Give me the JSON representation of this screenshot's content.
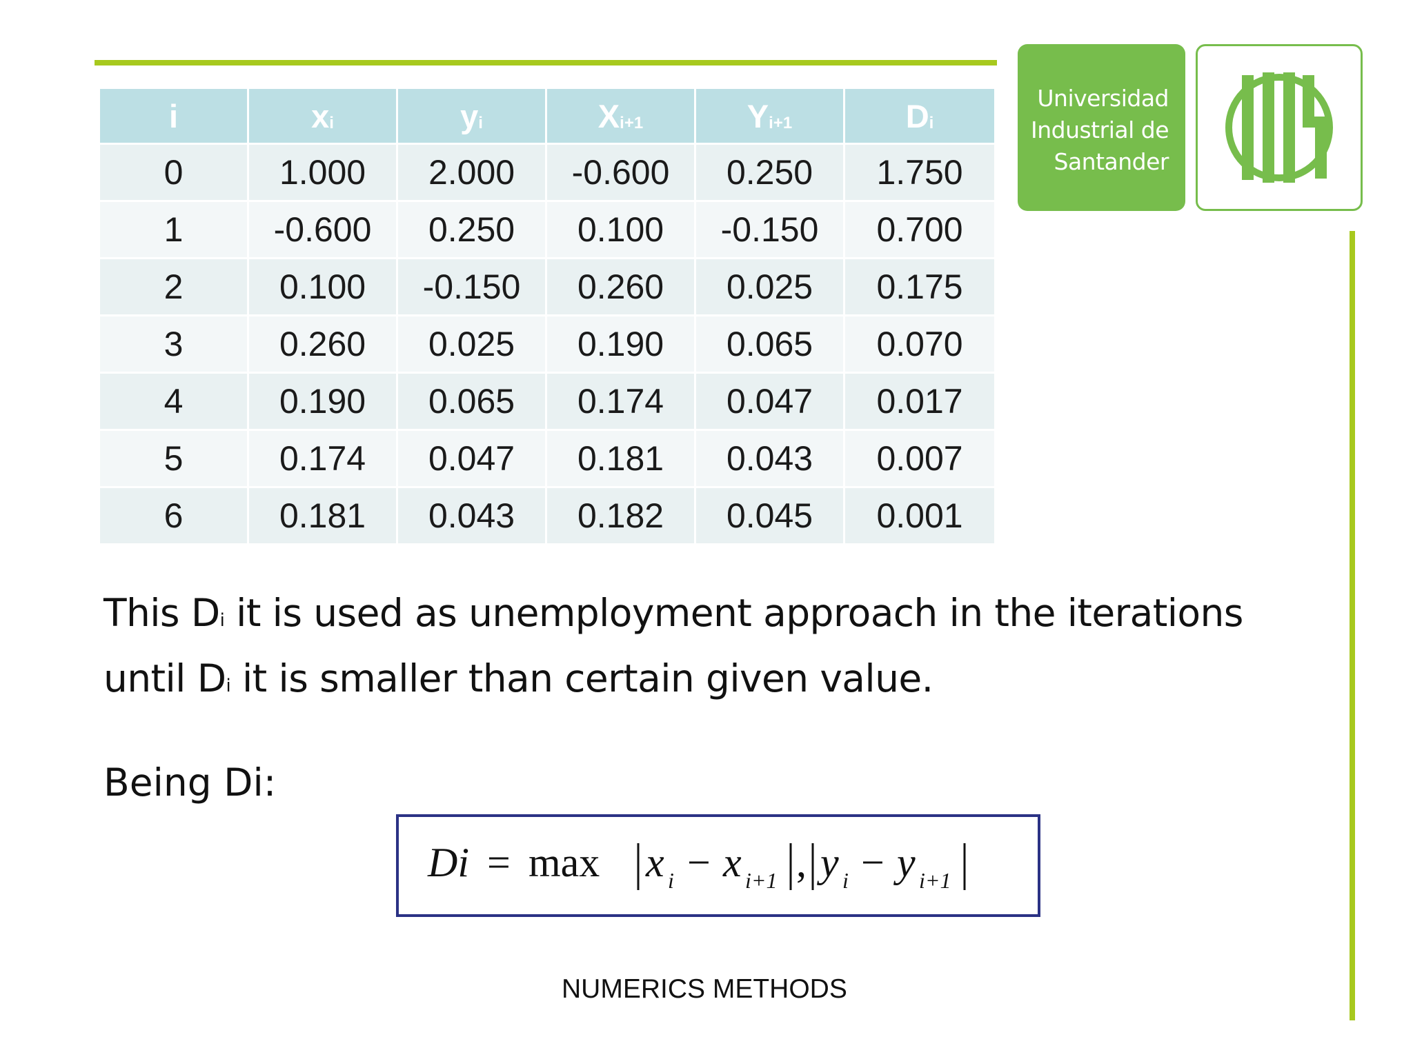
{
  "logo": {
    "name_lines": [
      "Universidad",
      "Industrial de",
      "Santander"
    ],
    "brand_color": "#77bd4c",
    "seal_icon": "uis-monogram-icon"
  },
  "accent_color": "#a7c91e",
  "table": {
    "headers": [
      {
        "main": "i",
        "sub": ""
      },
      {
        "main": "x",
        "sub": "i"
      },
      {
        "main": "y",
        "sub": "i"
      },
      {
        "main": "X",
        "sub": "i+1"
      },
      {
        "main": "Y",
        "sub": "i+1"
      },
      {
        "main": "D",
        "sub": "i"
      }
    ],
    "rows": [
      [
        "0",
        "1.000",
        "2.000",
        "-0.600",
        "0.250",
        "1.750"
      ],
      [
        "1",
        "-0.600",
        "0.250",
        "0.100",
        "-0.150",
        "0.700"
      ],
      [
        "2",
        "0.100",
        "-0.150",
        "0.260",
        "0.025",
        "0.175"
      ],
      [
        "3",
        "0.260",
        "0.025",
        "0.190",
        "0.065",
        "0.070"
      ],
      [
        "4",
        "0.190",
        "0.065",
        "0.174",
        "0.047",
        "0.017"
      ],
      [
        "5",
        "0.174",
        "0.047",
        "0.181",
        "0.043",
        "0.007"
      ],
      [
        "6",
        "0.181",
        "0.043",
        "0.182",
        "0.045",
        "0.001"
      ]
    ]
  },
  "paragraph": {
    "l1_a": "This D",
    "l1_sub": "i",
    "l1_b": " it is used as unemployment approach in the iterations",
    "l2_a": "until D",
    "l2_sub": "i",
    "l2_b": " it is smaller than certain given value."
  },
  "being_label": "Being Di:",
  "formula": {
    "lhs": "Di",
    "eq": "=",
    "op": "max",
    "x": "x",
    "y": "y",
    "i": "i",
    "i1": "i+1",
    "minus": "−",
    "comma": ","
  },
  "footer": "NUMERICS METHODS"
}
